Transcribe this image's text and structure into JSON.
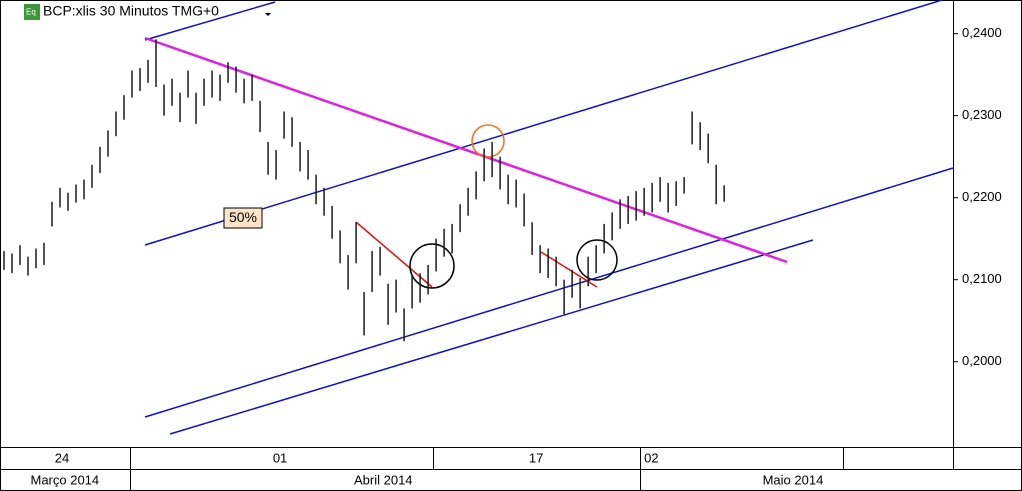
{
  "chart_data": {
    "type": "ohlc",
    "title": "BCP:xlis 30 Minutos TMG+0",
    "annotations": [
      "50%"
    ],
    "color": "#1a1a1a",
    "x": [
      0,
      1,
      2,
      3,
      4,
      5,
      6,
      7,
      8,
      9,
      10,
      11,
      12,
      13,
      14,
      15,
      16,
      17,
      18,
      19,
      20,
      21,
      22,
      23,
      24,
      25,
      26,
      27,
      28,
      29,
      30,
      31,
      32,
      33,
      34,
      35,
      36,
      37,
      38,
      39,
      40,
      41,
      42,
      43,
      44,
      45,
      46,
      47,
      48,
      49,
      50,
      51,
      52,
      53,
      54,
      55,
      56,
      57,
      58,
      59,
      60,
      61,
      62,
      63,
      64,
      65,
      66,
      67,
      68,
      69,
      70,
      71,
      72,
      73,
      74,
      75,
      76,
      77,
      78,
      79,
      80,
      81,
      82,
      83,
      84,
      85,
      86,
      87,
      88,
      89,
      90
    ],
    "high": [
      0.2135,
      0.2132,
      0.2142,
      0.2128,
      0.2138,
      0.2145,
      0.2195,
      0.2212,
      0.2206,
      0.2216,
      0.2222,
      0.224,
      0.2262,
      0.2282,
      0.2305,
      0.2325,
      0.2355,
      0.2358,
      0.2368,
      0.2393,
      0.2338,
      0.2345,
      0.2328,
      0.2355,
      0.2328,
      0.2345,
      0.2355,
      0.235,
      0.2365,
      0.236,
      0.2345,
      0.235,
      0.2318,
      0.2268,
      0.2258,
      0.2305,
      0.2298,
      0.2268,
      0.2258,
      0.2228,
      0.2212,
      0.219,
      0.216,
      0.213,
      0.217,
      0.2085,
      0.2135,
      0.214,
      0.2095,
      0.21,
      0.2065,
      0.2105,
      0.2108,
      0.2118,
      0.215,
      0.2162,
      0.2168,
      0.2192,
      0.2212,
      0.2232,
      0.226,
      0.2268,
      0.225,
      0.2228,
      0.2222,
      0.2205,
      0.217,
      0.2142,
      0.2138,
      0.2128,
      0.21,
      0.2112,
      0.2102,
      0.2128,
      0.2142,
      0.2168,
      0.2182,
      0.2198,
      0.2202,
      0.2208,
      0.2212,
      0.2218,
      0.2225,
      0.2218,
      0.222,
      0.2225,
      0.2305,
      0.2292,
      0.2278,
      0.224,
      0.2215
    ],
    "low": [
      0.2112,
      0.2108,
      0.2118,
      0.2105,
      0.2114,
      0.2118,
      0.2165,
      0.2188,
      0.2184,
      0.2194,
      0.2198,
      0.2212,
      0.223,
      0.225,
      0.2275,
      0.2295,
      0.2322,
      0.233,
      0.234,
      0.2335,
      0.23,
      0.2312,
      0.2292,
      0.2322,
      0.229,
      0.2312,
      0.2322,
      0.2318,
      0.234,
      0.2328,
      0.2315,
      0.2318,
      0.228,
      0.2228,
      0.2222,
      0.2272,
      0.2262,
      0.2232,
      0.2222,
      0.2192,
      0.2178,
      0.215,
      0.212,
      0.2088,
      0.212,
      0.2032,
      0.2085,
      0.2105,
      0.2045,
      0.206,
      0.2025,
      0.2065,
      0.2072,
      0.2082,
      0.211,
      0.2128,
      0.2132,
      0.2158,
      0.2178,
      0.2198,
      0.222,
      0.2225,
      0.221,
      0.2192,
      0.2188,
      0.2165,
      0.213,
      0.2108,
      0.2102,
      0.2092,
      0.2058,
      0.2078,
      0.2065,
      0.2092,
      0.2108,
      0.2132,
      0.2148,
      0.2162,
      0.2168,
      0.2172,
      0.2178,
      0.2182,
      0.2195,
      0.2182,
      0.219,
      0.2205,
      0.2265,
      0.2258,
      0.2242,
      0.2192,
      0.2195
    ],
    "xlim": [
      -0.5,
      118.6
    ],
    "ylim": [
      0.1896,
      0.2441
    ],
    "yticks": [
      {
        "value": 0.24,
        "label": "0,2400"
      },
      {
        "value": 0.23,
        "label": "0,2300"
      },
      {
        "value": 0.22,
        "label": "0,2200"
      },
      {
        "value": 0.21,
        "label": "0,2100"
      },
      {
        "value": 0.2,
        "label": "0,2000"
      }
    ],
    "xticks": [
      {
        "value": 7.25,
        "label": "24"
      },
      {
        "value": 34.5,
        "label": "01"
      },
      {
        "value": 66.5,
        "label": "17"
      },
      {
        "value": 80.9,
        "label": "02"
      }
    ],
    "month_ticks": [
      {
        "value": 7.6,
        "label": "Março 2014"
      },
      {
        "value": 47.4,
        "label": "Abril 2014"
      },
      {
        "value": 98.6,
        "label": "Maio 2014"
      }
    ]
  }
}
